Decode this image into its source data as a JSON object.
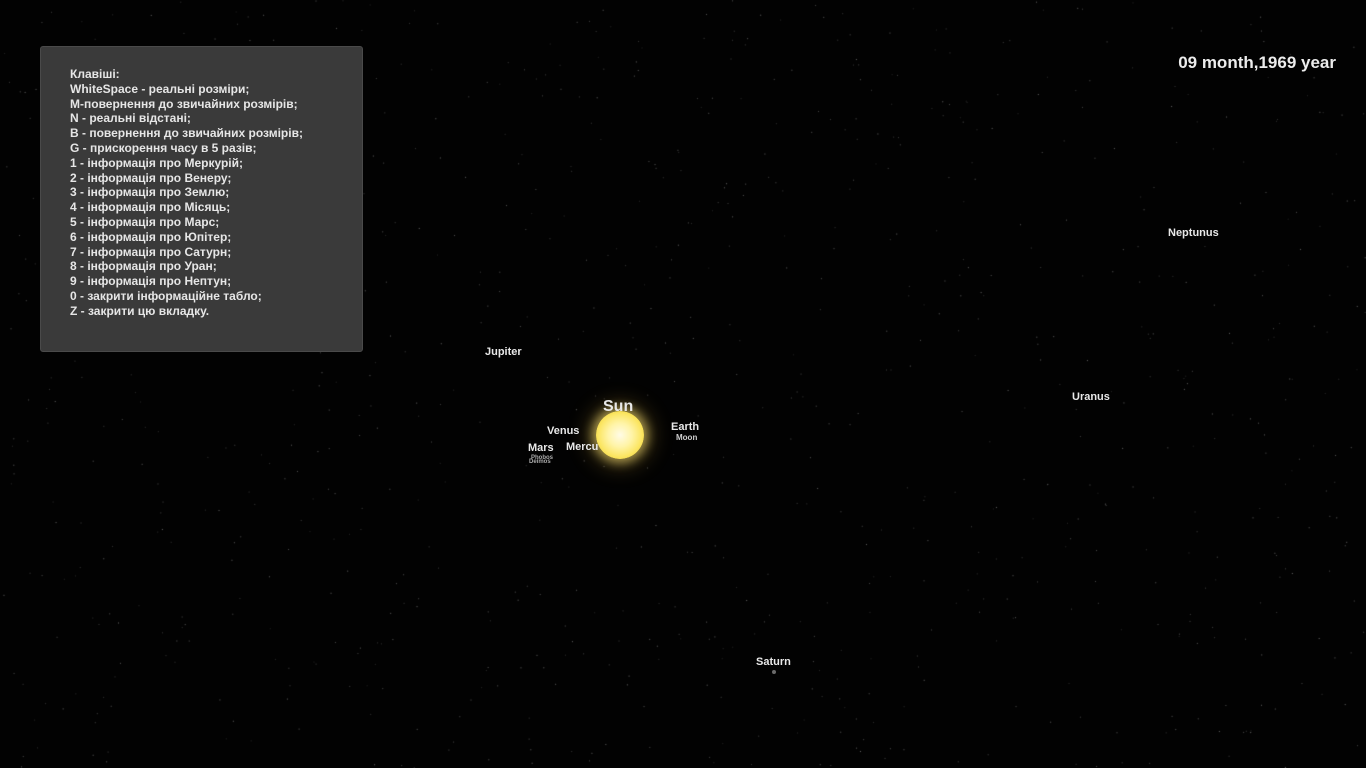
{
  "help_panel": {
    "lines": [
      "Клавіші:",
      "WhiteSpace - реальні розміри;",
      "M-повернення до звичайних розмірів;",
      "N - реальні відстані;",
      "B - повернення до звичайних розмірів;",
      "G - прискорення часу в 5 разів;",
      "1 - інформація про Меркурій;",
      "2 - інформація про Венеру;",
      "3 - інформація про Землю;",
      "4 - інформація про Місяць;",
      "5 - інформація про Марс;",
      "6 - інформація про Юпітер;",
      "7 - інформація про Сатурн;",
      "8 - інформація про Уран;",
      "9 - інформація про Нептун;",
      "0 - закрити інформаційне табло;",
      "Z - закрити цю вкладку."
    ]
  },
  "date_display": "09 month,1969 year",
  "bodies": {
    "sun": "Sun",
    "mercury": "Mercu",
    "venus": "Venus",
    "earth": "Earth",
    "moon": "Moon",
    "mars": "Mars",
    "phobos": "Phobos",
    "deimos": "Deimos",
    "jupiter": "Jupiter",
    "saturn": "Saturn",
    "uranus": "Uranus",
    "neptune": "Neptunus"
  },
  "colors": {
    "background": "#020202",
    "panel": "#3a3a3a",
    "text": "#e8e8e8",
    "sun": "#fbe560"
  }
}
